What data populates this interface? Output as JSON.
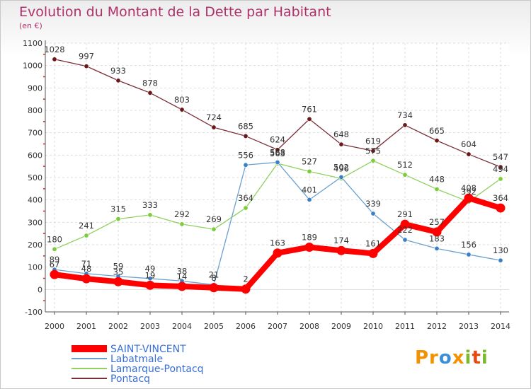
{
  "chart_data": {
    "type": "line",
    "title": "Evolution du Montant de la Dette par Habitant",
    "subtitle": "(en €)",
    "xlabel": "",
    "ylabel": "",
    "x": [
      "2000",
      "2001",
      "2002",
      "2003",
      "2004",
      "2005",
      "2006",
      "2007",
      "2008",
      "2009",
      "2010",
      "2011",
      "2012",
      "2013",
      "2014"
    ],
    "ylim": [
      -100,
      1100
    ],
    "yticks": [
      -100,
      0,
      100,
      200,
      300,
      400,
      500,
      600,
      700,
      800,
      900,
      1000,
      1100
    ],
    "grid": true,
    "legend_position": "bottom-left",
    "series": [
      {
        "name": "SAINT-VINCENT",
        "color": "#ff0000",
        "marker_color": "#ff0000",
        "values": [
          67,
          48,
          35,
          19,
          14,
          8,
          2,
          163,
          189,
          174,
          161,
          291,
          257,
          408,
          364
        ]
      },
      {
        "name": "Labatmale",
        "color": "#6aa0d0",
        "marker_color": "#3a80c8",
        "values": [
          89,
          71,
          59,
          49,
          38,
          21,
          556,
          568,
          401,
          502,
          339,
          222,
          183,
          156,
          130
        ]
      },
      {
        "name": "Lamarque-Pontacq",
        "color": "#90d060",
        "marker_color": "#7ccc3c",
        "values": [
          180,
          241,
          315,
          333,
          292,
          269,
          364,
          563,
          527,
          496,
          575,
          512,
          448,
          392,
          494
        ]
      },
      {
        "name": "Pontacq",
        "color": "#7a2e36",
        "marker_color": "#6a1818",
        "values": [
          1028,
          997,
          933,
          878,
          803,
          724,
          685,
          624,
          761,
          648,
          619,
          734,
          665,
          604,
          547
        ]
      }
    ]
  },
  "logo": {
    "parts": [
      "Pr",
      "o",
      "x",
      "i",
      "t",
      "i"
    ],
    "colors": [
      "#f39200",
      "#3c8fd6",
      "#f39200",
      "#7ab929",
      "#e84a12",
      "#7ab929"
    ]
  }
}
